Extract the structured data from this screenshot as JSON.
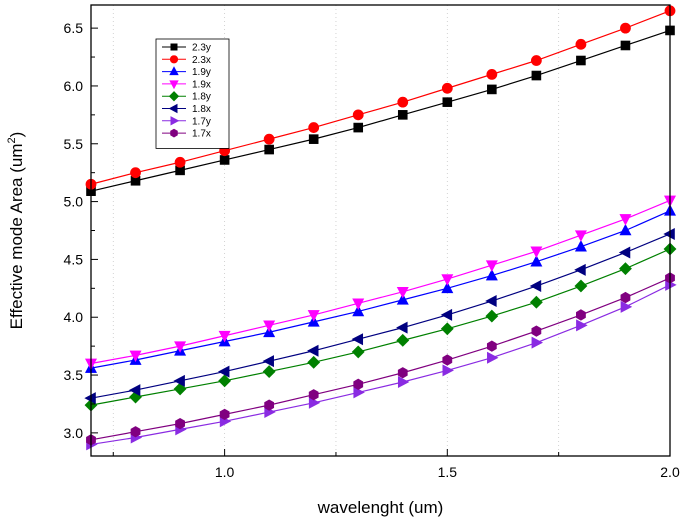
{
  "chart_data": {
    "type": "line",
    "title": "",
    "xlabel": "wavelenght (um)",
    "ylabel_main": "Effective mode Area (um",
    "ylabel_sup": "2",
    "ylabel_end": ")",
    "xlim": [
      0.7,
      2.0
    ],
    "ylim": [
      2.8,
      6.7
    ],
    "xticks": [
      1.0,
      1.5,
      2.0
    ],
    "xtick_labels": [
      "1.0",
      "1.5",
      "2.0"
    ],
    "yticks": [
      3.0,
      3.5,
      4.0,
      4.5,
      5.0,
      5.5,
      6.0,
      6.5
    ],
    "ytick_labels": [
      "3.0",
      "3.5",
      "4.0",
      "4.5",
      "5.0",
      "5.5",
      "6.0",
      "6.5"
    ],
    "grid": "vertical dotted",
    "legend_position": "top-left",
    "x": [
      0.7,
      0.8,
      0.9,
      1.0,
      1.1,
      1.2,
      1.3,
      1.4,
      1.5,
      1.6,
      1.7,
      1.8,
      1.9,
      2.0
    ],
    "series": [
      {
        "name": "2.3y",
        "color": "#000000",
        "marker": "square",
        "values": [
          5.09,
          5.18,
          5.27,
          5.36,
          5.45,
          5.54,
          5.64,
          5.75,
          5.86,
          5.97,
          6.09,
          6.22,
          6.35,
          6.48
        ]
      },
      {
        "name": "2.3x",
        "color": "#ff0000",
        "marker": "circle",
        "values": [
          5.15,
          5.25,
          5.34,
          5.44,
          5.54,
          5.64,
          5.75,
          5.86,
          5.98,
          6.1,
          6.22,
          6.36,
          6.5,
          6.65
        ]
      },
      {
        "name": "1.9y",
        "color": "#0000ff",
        "marker": "triangle-up",
        "values": [
          3.56,
          3.63,
          3.71,
          3.79,
          3.87,
          3.96,
          4.05,
          4.15,
          4.25,
          4.36,
          4.48,
          4.61,
          4.75,
          4.92
        ]
      },
      {
        "name": "1.9x",
        "color": "#ff00ff",
        "marker": "triangle-down",
        "values": [
          3.6,
          3.67,
          3.75,
          3.84,
          3.93,
          4.02,
          4.12,
          4.22,
          4.33,
          4.45,
          4.57,
          4.71,
          4.85,
          5.01
        ]
      },
      {
        "name": "1.8y",
        "color": "#008000",
        "marker": "diamond",
        "values": [
          3.24,
          3.31,
          3.38,
          3.45,
          3.53,
          3.61,
          3.7,
          3.8,
          3.9,
          4.01,
          4.13,
          4.27,
          4.42,
          4.59
        ]
      },
      {
        "name": "1.8x",
        "color": "#000080",
        "marker": "triangle-left",
        "values": [
          3.3,
          3.37,
          3.45,
          3.53,
          3.62,
          3.71,
          3.81,
          3.91,
          4.02,
          4.14,
          4.27,
          4.41,
          4.56,
          4.72
        ]
      },
      {
        "name": "1.7y",
        "color": "#8a2be2",
        "marker": "triangle-right",
        "values": [
          2.9,
          2.96,
          3.03,
          3.1,
          3.18,
          3.26,
          3.35,
          3.44,
          3.54,
          3.65,
          3.78,
          3.93,
          4.09,
          4.28
        ]
      },
      {
        "name": "1.7x",
        "color": "#800080",
        "marker": "hexagon",
        "values": [
          2.94,
          3.01,
          3.08,
          3.16,
          3.24,
          3.33,
          3.42,
          3.52,
          3.63,
          3.75,
          3.88,
          4.02,
          4.17,
          4.34
        ]
      }
    ]
  }
}
